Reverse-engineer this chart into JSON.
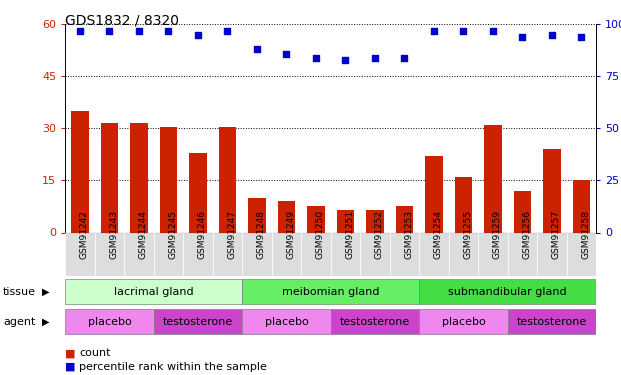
{
  "title": "GDS1832 / 8320",
  "samples": [
    "GSM91242",
    "GSM91243",
    "GSM91244",
    "GSM91245",
    "GSM91246",
    "GSM91247",
    "GSM91248",
    "GSM91249",
    "GSM91250",
    "GSM91251",
    "GSM91252",
    "GSM91253",
    "GSM91254",
    "GSM91255",
    "GSM91259",
    "GSM91256",
    "GSM91257",
    "GSM91258"
  ],
  "counts": [
    35,
    31.5,
    31.5,
    30.5,
    23,
    30.5,
    10,
    9,
    7.5,
    6.5,
    6.5,
    7.5,
    22,
    16,
    31,
    12,
    24,
    15
  ],
  "percentiles": [
    97,
    97,
    97,
    97,
    95,
    97,
    88,
    86,
    84,
    83,
    84,
    84,
    97,
    97,
    97,
    94,
    95,
    94
  ],
  "bar_color": "#cc2200",
  "dot_color": "#0000cc",
  "ylim_left": [
    0,
    60
  ],
  "ylim_right": [
    0,
    100
  ],
  "yticks_left": [
    0,
    15,
    30,
    45,
    60
  ],
  "yticks_right": [
    0,
    25,
    50,
    75,
    100
  ],
  "tissue_groups": [
    {
      "label": "lacrimal gland",
      "start": 0,
      "end": 6,
      "color": "#ccffcc"
    },
    {
      "label": "meibomian gland",
      "start": 6,
      "end": 12,
      "color": "#66ee66"
    },
    {
      "label": "submandibular gland",
      "start": 12,
      "end": 18,
      "color": "#44dd44"
    }
  ],
  "agent_groups": [
    {
      "label": "placebo",
      "start": 0,
      "end": 3,
      "color": "#ee88ee"
    },
    {
      "label": "testosterone",
      "start": 3,
      "end": 6,
      "color": "#cc44cc"
    },
    {
      "label": "placebo",
      "start": 6,
      "end": 9,
      "color": "#ee88ee"
    },
    {
      "label": "testosterone",
      "start": 9,
      "end": 12,
      "color": "#cc44cc"
    },
    {
      "label": "placebo",
      "start": 12,
      "end": 15,
      "color": "#ee88ee"
    },
    {
      "label": "testosterone",
      "start": 15,
      "end": 18,
      "color": "#cc44cc"
    }
  ],
  "tissue_label": "tissue",
  "agent_label": "agent",
  "legend_count_label": "count",
  "legend_pct_label": "percentile rank within the sample",
  "grid_color": "#000000",
  "bg_color": "#ffffff",
  "plot_bg_color": "#ffffff",
  "tick_label_color_left": "#cc2200",
  "tick_label_color_right": "#0000cc",
  "title_color": "#000000",
  "xticklabel_bg": "#dddddd"
}
